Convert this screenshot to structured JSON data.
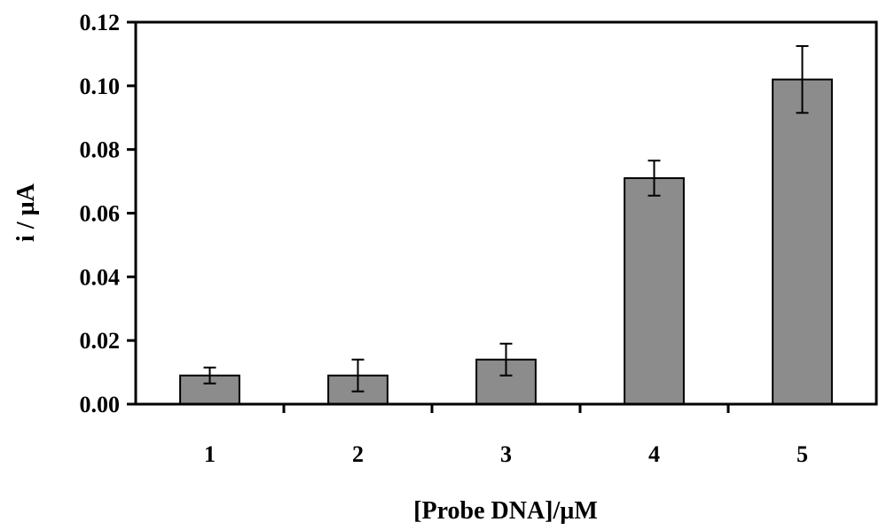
{
  "chart_data": {
    "type": "bar",
    "categories": [
      "1",
      "2",
      "3",
      "4",
      "5"
    ],
    "values": [
      0.009,
      0.009,
      0.014,
      0.071,
      0.102
    ],
    "errors": [
      0.0025,
      0.005,
      0.005,
      0.0055,
      0.0105
    ],
    "xlabel": "[Probe DNA]/µM",
    "ylabel": "i / µA",
    "ylim": [
      0,
      0.12
    ],
    "yticks": [
      "0.00",
      "0.02",
      "0.04",
      "0.06",
      "0.08",
      "0.10",
      "0.12"
    ],
    "grid": false,
    "bar_color": "#8c8c8c"
  }
}
